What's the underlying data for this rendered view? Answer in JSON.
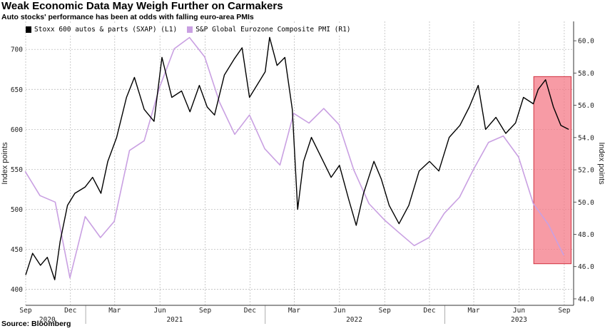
{
  "title": "Weak Economic Data May Weigh Further on Carmakers",
  "subtitle": "Auto stocks' performance has been at odds with falling euro-area PMIs",
  "source": "Source: Bloomberg",
  "chart_data": {
    "type": "line",
    "x_range": [
      "2020-09-01",
      "2023-09-20"
    ],
    "left_axis": {
      "label": "Index points",
      "range": [
        380,
        735
      ],
      "ticks": [
        400,
        450,
        500,
        550,
        600,
        650,
        700
      ]
    },
    "right_axis": {
      "label": "Index points",
      "range": [
        43.6,
        61.2
      ],
      "ticks": [
        "44.0",
        "46.0",
        "48.0",
        "50.0",
        "52.0",
        "54.0",
        "56.0",
        "58.0",
        "60.0"
      ]
    },
    "x_ticks": [
      {
        "label": "Sep",
        "date": "2020-09-01"
      },
      {
        "label": "Dec",
        "date": "2020-12-01"
      },
      {
        "label": "Mar",
        "date": "2021-03-01"
      },
      {
        "label": "Jun",
        "date": "2021-06-01"
      },
      {
        "label": "Sep",
        "date": "2021-09-01"
      },
      {
        "label": "Dec",
        "date": "2021-12-01"
      },
      {
        "label": "Mar",
        "date": "2022-03-01"
      },
      {
        "label": "Jun",
        "date": "2022-06-01"
      },
      {
        "label": "Sep",
        "date": "2022-09-01"
      },
      {
        "label": "Dec",
        "date": "2022-12-01"
      },
      {
        "label": "Mar",
        "date": "2023-03-01"
      },
      {
        "label": "Jun",
        "date": "2023-06-01"
      },
      {
        "label": "Sep",
        "date": "2023-09-01"
      }
    ],
    "year_labels": [
      {
        "label": "2020",
        "date": "2020-10-15"
      },
      {
        "label": "2021",
        "date": "2021-07-01"
      },
      {
        "label": "2022",
        "date": "2022-07-01"
      },
      {
        "label": "2023",
        "date": "2023-06-01"
      }
    ],
    "grid": true,
    "legend_position": "top-left",
    "highlight": {
      "start": "2023-07-01",
      "end": "2023-09-15",
      "y_range": [
        432,
        666
      ],
      "color": "#f47a87"
    },
    "series": [
      {
        "name": "Stoxx 600 autos & parts (SXAP) (L1)",
        "axis": "left",
        "color": "#000000",
        "points": [
          [
            "2020-09-01",
            418
          ],
          [
            "2020-09-15",
            445
          ],
          [
            "2020-10-01",
            430
          ],
          [
            "2020-10-15",
            440
          ],
          [
            "2020-10-30",
            412
          ],
          [
            "2020-11-10",
            460
          ],
          [
            "2020-11-25",
            505
          ],
          [
            "2020-12-10",
            520
          ],
          [
            "2020-12-31",
            528
          ],
          [
            "2021-01-15",
            540
          ],
          [
            "2021-02-01",
            520
          ],
          [
            "2021-02-15",
            560
          ],
          [
            "2021-03-05",
            590
          ],
          [
            "2021-03-25",
            640
          ],
          [
            "2021-04-10",
            665
          ],
          [
            "2021-04-30",
            625
          ],
          [
            "2021-05-20",
            610
          ],
          [
            "2021-06-05",
            690
          ],
          [
            "2021-06-25",
            640
          ],
          [
            "2021-07-15",
            648
          ],
          [
            "2021-08-01",
            622
          ],
          [
            "2021-08-20",
            655
          ],
          [
            "2021-09-05",
            628
          ],
          [
            "2021-09-20",
            618
          ],
          [
            "2021-10-10",
            668
          ],
          [
            "2021-10-30",
            688
          ],
          [
            "2021-11-15",
            702
          ],
          [
            "2021-11-30",
            640
          ],
          [
            "2021-12-15",
            655
          ],
          [
            "2022-01-01",
            672
          ],
          [
            "2022-01-10",
            715
          ],
          [
            "2022-01-25",
            680
          ],
          [
            "2022-02-10",
            690
          ],
          [
            "2022-02-25",
            625
          ],
          [
            "2022-03-08",
            500
          ],
          [
            "2022-03-20",
            560
          ],
          [
            "2022-04-05",
            590
          ],
          [
            "2022-04-25",
            565
          ],
          [
            "2022-05-15",
            540
          ],
          [
            "2022-06-01",
            555
          ],
          [
            "2022-06-20",
            512
          ],
          [
            "2022-07-05",
            480
          ],
          [
            "2022-07-20",
            520
          ],
          [
            "2022-08-10",
            560
          ],
          [
            "2022-08-25",
            538
          ],
          [
            "2022-09-10",
            505
          ],
          [
            "2022-09-30",
            482
          ],
          [
            "2022-10-20",
            505
          ],
          [
            "2022-11-10",
            548
          ],
          [
            "2022-12-01",
            560
          ],
          [
            "2022-12-20",
            548
          ],
          [
            "2023-01-10",
            590
          ],
          [
            "2023-02-01",
            605
          ],
          [
            "2023-02-20",
            628
          ],
          [
            "2023-03-10",
            655
          ],
          [
            "2023-03-25",
            600
          ],
          [
            "2023-04-15",
            615
          ],
          [
            "2023-05-05",
            595
          ],
          [
            "2023-05-25",
            608
          ],
          [
            "2023-06-10",
            640
          ],
          [
            "2023-06-30",
            632
          ],
          [
            "2023-07-10",
            650
          ],
          [
            "2023-07-25",
            662
          ],
          [
            "2023-08-10",
            628
          ],
          [
            "2023-08-25",
            605
          ],
          [
            "2023-09-10",
            600
          ]
        ]
      },
      {
        "name": "S&P Global Eurozone Composite PMI (R1)",
        "axis": "right",
        "color": "#c9a0e2",
        "points": [
          [
            "2020-08-31",
            51.9
          ],
          [
            "2020-09-30",
            50.4
          ],
          [
            "2020-10-31",
            50.0
          ],
          [
            "2020-11-30",
            45.3
          ],
          [
            "2020-12-31",
            49.1
          ],
          [
            "2021-01-31",
            47.8
          ],
          [
            "2021-02-28",
            48.8
          ],
          [
            "2021-03-31",
            53.2
          ],
          [
            "2021-04-30",
            53.8
          ],
          [
            "2021-05-31",
            57.1
          ],
          [
            "2021-06-30",
            59.5
          ],
          [
            "2021-07-31",
            60.2
          ],
          [
            "2021-08-31",
            59.0
          ],
          [
            "2021-09-30",
            56.2
          ],
          [
            "2021-10-31",
            54.2
          ],
          [
            "2021-11-30",
            55.4
          ],
          [
            "2021-12-31",
            53.3
          ],
          [
            "2022-01-31",
            52.3
          ],
          [
            "2022-02-28",
            55.5
          ],
          [
            "2022-03-31",
            54.9
          ],
          [
            "2022-04-30",
            55.8
          ],
          [
            "2022-05-31",
            54.8
          ],
          [
            "2022-06-30",
            52.0
          ],
          [
            "2022-07-31",
            49.9
          ],
          [
            "2022-08-31",
            48.9
          ],
          [
            "2022-09-30",
            48.1
          ],
          [
            "2022-10-31",
            47.3
          ],
          [
            "2022-11-30",
            47.8
          ],
          [
            "2022-12-31",
            49.3
          ],
          [
            "2023-01-31",
            50.3
          ],
          [
            "2023-02-28",
            52.0
          ],
          [
            "2023-03-31",
            53.7
          ],
          [
            "2023-04-30",
            54.1
          ],
          [
            "2023-05-31",
            52.8
          ],
          [
            "2023-06-30",
            49.9
          ],
          [
            "2023-07-31",
            48.6
          ],
          [
            "2023-08-31",
            46.7
          ]
        ]
      }
    ]
  }
}
